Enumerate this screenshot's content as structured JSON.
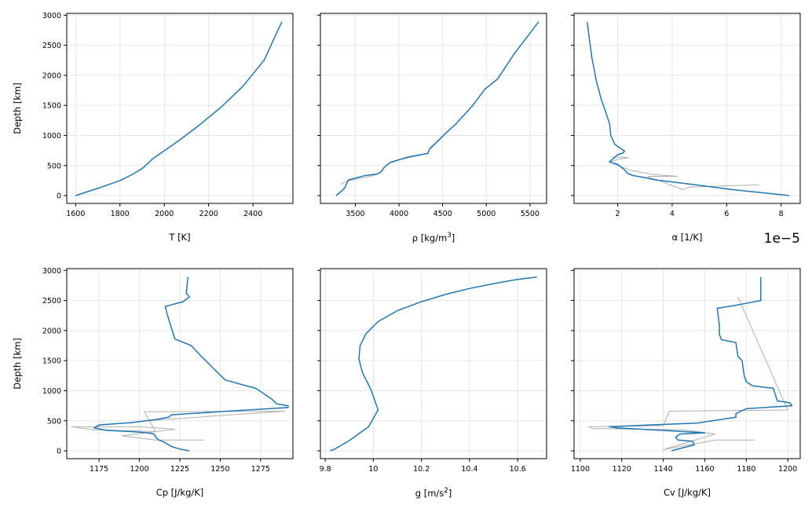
{
  "chart_data": [
    {
      "type": "line",
      "panel": "temperature",
      "xlabel": "T [K]",
      "ylabel": "Depth [km]",
      "xlim": [
        1560,
        2580
      ],
      "ylim": [
        -130,
        3030
      ],
      "xticks": [
        1600,
        1800,
        2000,
        2200,
        2400
      ],
      "yticks": [
        0,
        500,
        1000,
        1500,
        2000,
        2500,
        3000
      ],
      "grid": true,
      "series": [
        {
          "name": "profile",
          "x": [
            1600,
            1700,
            1800,
            1860,
            1900,
            1930,
            1950,
            1990,
            2060,
            2150,
            2250,
            2350,
            2450,
            2530
          ],
          "y": [
            0,
            120,
            250,
            360,
            450,
            550,
            620,
            720,
            900,
            1150,
            1450,
            1800,
            2250,
            2890
          ]
        }
      ]
    },
    {
      "type": "line",
      "panel": "density",
      "xlabel": "ρ [kg/m",
      "xlabel_sup": "3",
      "xlabel_end": "]",
      "ylabel": "",
      "ylim": [
        -130,
        3030
      ],
      "xlim": [
        3100,
        5690
      ],
      "xticks": [
        3500,
        4000,
        4500,
        5000,
        5500
      ],
      "yticks": [
        0,
        500,
        1000,
        1500,
        2000,
        2500,
        3000
      ],
      "grid": true,
      "series": [
        {
          "name": "profile",
          "x": [
            3280,
            3330,
            3380,
            3420,
            3600,
            3750,
            3800,
            3830,
            3900,
            4100,
            4330,
            4350,
            4530,
            4650,
            4840,
            4990,
            5020,
            5130,
            5320,
            5600
          ],
          "y": [
            0,
            60,
            130,
            260,
            330,
            360,
            400,
            470,
            550,
            640,
            700,
            770,
            1030,
            1190,
            1490,
            1780,
            1810,
            1940,
            2360,
            2890
          ]
        },
        {
          "name": "raw",
          "style": "raw",
          "x": [
            3330,
            3400,
            3700,
            3780,
            3830,
            3900,
            4110,
            4330,
            4350,
            4530,
            4650
          ],
          "y": [
            190,
            240,
            330,
            370,
            470,
            560,
            630,
            700,
            790,
            1030,
            1190
          ]
        }
      ]
    },
    {
      "type": "line",
      "panel": "expansivity",
      "xlabel": "α [1/K]",
      "ylabel": "",
      "offset": "1e−5",
      "xlim": [
        0.4,
        8.7
      ],
      "ylim": [
        -130,
        3030
      ],
      "xticks": [
        2,
        4,
        6,
        8
      ],
      "yticks": [
        0,
        500,
        1000,
        1500,
        2000,
        2500,
        3000
      ],
      "grid": true,
      "series": [
        {
          "name": "profile",
          "x": [
            8.3,
            6.2,
            4.5,
            3.4,
            3.0,
            2.6,
            2.4,
            2.3,
            2.25,
            2.0,
            1.7,
            1.85,
            2.0,
            2.2,
            2.25,
            1.9,
            1.75,
            1.7,
            1.55,
            1.4,
            1.22,
            1.05,
            0.88
          ],
          "y": [
            0,
            100,
            200,
            260,
            300,
            330,
            360,
            400,
            430,
            520,
            560,
            620,
            680,
            710,
            740,
            850,
            1000,
            1200,
            1400,
            1600,
            1900,
            2300,
            2890
          ]
        },
        {
          "name": "raw",
          "style": "raw",
          "x": [
            7.2,
            4.6,
            4.4,
            3.4,
            3.2,
            3.1,
            4.2,
            3.3,
            2.5,
            2.0,
            1.7,
            2.0,
            2.4,
            1.8
          ],
          "y": [
            180,
            140,
            100,
            270,
            290,
            320,
            320,
            350,
            420,
            500,
            560,
            600,
            630,
            640
          ]
        }
      ]
    },
    {
      "type": "line",
      "panel": "cp",
      "xlabel": "Cp [J/kg/K]",
      "ylabel": "Depth [km]",
      "xlim": [
        1155,
        1295
      ],
      "ylim": [
        -130,
        3030
      ],
      "xticks": [
        1175,
        1200,
        1225,
        1250,
        1275
      ],
      "yticks": [
        0,
        500,
        1000,
        1500,
        2000,
        2500,
        3000
      ],
      "grid": true,
      "series": [
        {
          "name": "profile",
          "x": [
            1231,
            1225,
            1220,
            1215,
            1212,
            1210,
            1209,
            1205,
            1195,
            1180,
            1172,
            1175,
            1195,
            1210,
            1218,
            1220,
            1255,
            1292,
            1292,
            1285,
            1282,
            1272,
            1265,
            1253,
            1250,
            1238,
            1232,
            1222,
            1221,
            1217,
            1216,
            1227,
            1231,
            1229,
            1230
          ],
          "y": [
            0,
            30,
            70,
            150,
            180,
            230,
            280,
            300,
            320,
            340,
            380,
            430,
            470,
            520,
            560,
            600,
            660,
            720,
            750,
            780,
            860,
            1040,
            1090,
            1180,
            1260,
            1580,
            1750,
            1860,
            1940,
            2290,
            2400,
            2480,
            2560,
            2620,
            2890
          ]
        },
        {
          "name": "raw",
          "style": "raw",
          "x": [
            1240,
            1210,
            1189,
            1222,
            1200,
            1158,
            1172,
            1210,
            1203,
            1290,
            1220,
            1205
          ],
          "y": [
            180,
            180,
            250,
            360,
            400,
            400,
            350,
            320,
            650,
            660,
            530,
            500
          ]
        }
      ]
    },
    {
      "type": "line",
      "panel": "gravity",
      "xlabel": "g [m/s",
      "xlabel_sup": "2",
      "xlabel_end": "]",
      "ylabel": "",
      "xlim": [
        9.78,
        10.72
      ],
      "ylim": [
        -130,
        3030
      ],
      "xticks": [
        9.8,
        10.0,
        10.2,
        10.4,
        10.6
      ],
      "yticks": [
        0,
        500,
        1000,
        1500,
        2000,
        2500,
        3000
      ],
      "grid": true,
      "series": [
        {
          "name": "profile",
          "x": [
            9.82,
            9.84,
            9.9,
            9.98,
            10.02,
            9.99,
            9.955,
            9.94,
            9.945,
            9.97,
            10.02,
            10.1,
            10.2,
            10.3,
            10.4,
            10.5,
            10.6,
            10.68
          ],
          "y": [
            0,
            30,
            170,
            400,
            680,
            1020,
            1300,
            1530,
            1750,
            1950,
            2150,
            2330,
            2480,
            2600,
            2700,
            2780,
            2850,
            2890
          ]
        }
      ]
    },
    {
      "type": "line",
      "panel": "cv",
      "xlabel": "Cv [J/kg/K]",
      "ylabel": "",
      "xlim": [
        1097,
        1206
      ],
      "ylim": [
        -130,
        3030
      ],
      "xticks": [
        1100,
        1120,
        1140,
        1160,
        1180,
        1200
      ],
      "yticks": [
        0,
        500,
        1000,
        1500,
        2000,
        2500,
        3000
      ],
      "grid": true,
      "series": [
        {
          "name": "profile",
          "x": [
            1144,
            1146,
            1155,
            1154,
            1147,
            1146,
            1148,
            1160,
            1140,
            1118,
            1114,
            1133,
            1156,
            1175,
            1175,
            1180,
            1202,
            1201,
            1195,
            1193,
            1183,
            1180,
            1179,
            1178,
            1176,
            1175,
            1168,
            1167,
            1167,
            1166,
            1175,
            1187,
            1187,
            1187,
            1187
          ],
          "y": [
            0,
            20,
            100,
            160,
            180,
            230,
            280,
            300,
            340,
            380,
            400,
            430,
            460,
            560,
            620,
            700,
            750,
            800,
            830,
            1040,
            1080,
            1150,
            1250,
            1500,
            1570,
            1800,
            1850,
            1940,
            2100,
            2370,
            2420,
            2500,
            2570,
            2700,
            2890
          ]
        },
        {
          "name": "raw",
          "style": "raw",
          "x": [
            1184,
            1165,
            1140,
            1165,
            1150,
            1106,
            1104,
            1140,
            1143,
            1200,
            1176
          ],
          "y": [
            180,
            180,
            20,
            280,
            350,
            370,
            400,
            420,
            660,
            680,
            2560
          ]
        }
      ]
    }
  ]
}
